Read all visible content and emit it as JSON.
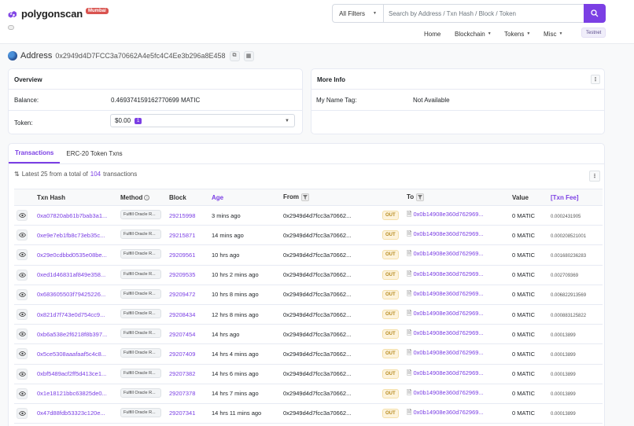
{
  "header": {
    "logo_text": "polygonscan",
    "logo_badge": "Mumbai",
    "filter_label": "All Filters",
    "search_placeholder": "Search by Address / Txn Hash / Block / Token",
    "nav": {
      "home": "Home",
      "blockchain": "Blockchain",
      "tokens": "Tokens",
      "misc": "Misc",
      "testnet": "Testnet"
    }
  },
  "address": {
    "label": "Address",
    "value": "0x2949d4D7FCC3a70662A4e5fc4C4Ee3b296a8E458"
  },
  "overview": {
    "title": "Overview",
    "balance_label": "Balance:",
    "balance_value": "0.469374159162770699 MATIC",
    "token_label": "Token:",
    "token_value": "$0.00",
    "token_count": "1"
  },
  "more_info": {
    "title": "More Info",
    "name_tag_label": "My Name Tag:",
    "name_tag_value": "Not Available"
  },
  "tabs": {
    "transactions": "Transactions",
    "erc20": "ERC-20 Token Txns"
  },
  "summary": {
    "prefix": "Latest 25 from a total of",
    "count": "104",
    "suffix": "transactions"
  },
  "table": {
    "headers": {
      "hash": "Txn Hash",
      "method": "Method",
      "block": "Block",
      "age": "Age",
      "from": "From",
      "to": "To",
      "value": "Value",
      "fee": "[Txn Fee]"
    },
    "rows": [
      {
        "hash": "0xa07820ab61b7bab3a1...",
        "method": "Fulfill Oracle R...",
        "block": "29215998",
        "age": "3 mins ago",
        "from": "0x2949d4d7fcc3a70662...",
        "dir": "OUT",
        "to": "0x0b14908e360d762969...",
        "value": "0 MATIC",
        "fee": "0.0002431905"
      },
      {
        "hash": "0xe9e7eb1fb8c73eb35c...",
        "method": "Fulfill Oracle R...",
        "block": "29215871",
        "age": "14 mins ago",
        "from": "0x2949d4d7fcc3a70662...",
        "dir": "OUT",
        "to": "0x0b14908e360d762969...",
        "value": "0 MATIC",
        "fee": "0.000208521001"
      },
      {
        "hash": "0x29e0cdbbd0535e08be...",
        "method": "Fulfill Oracle R...",
        "block": "29209561",
        "age": "10 hrs ago",
        "from": "0x2949d4d7fcc3a70662...",
        "dir": "OUT",
        "to": "0x0b14908e360d762969...",
        "value": "0 MATIC",
        "fee": "0.001680236283"
      },
      {
        "hash": "0xed1d46831af849e358...",
        "method": "Fulfill Oracle R...",
        "block": "29209535",
        "age": "10 hrs 2 mins ago",
        "from": "0x2949d4d7fcc3a70662...",
        "dir": "OUT",
        "to": "0x0b14908e360d762969...",
        "value": "0 MATIC",
        "fee": "0.002709369"
      },
      {
        "hash": "0x683605503f79425226...",
        "method": "Fulfill Oracle R...",
        "block": "29209472",
        "age": "10 hrs 8 mins ago",
        "from": "0x2949d4d7fcc3a70662...",
        "dir": "OUT",
        "to": "0x0b14908e360d762969...",
        "value": "0 MATIC",
        "fee": "0.006822913569"
      },
      {
        "hash": "0x821d7f743e0d754cc9...",
        "method": "Fulfill Oracle R...",
        "block": "29208434",
        "age": "12 hrs 8 mins ago",
        "from": "0x2949d4d7fcc3a70662...",
        "dir": "OUT",
        "to": "0x0b14908e360d762969...",
        "value": "0 MATIC",
        "fee": "0.000883125822"
      },
      {
        "hash": "0xb6a538e2f6218f8b397...",
        "method": "Fulfill Oracle R...",
        "block": "29207454",
        "age": "14 hrs ago",
        "from": "0x2949d4d7fcc3a70662...",
        "dir": "OUT",
        "to": "0x0b14908e360d762969...",
        "value": "0 MATIC",
        "fee": "0.00013899"
      },
      {
        "hash": "0x5ce5308aaafaaf5c4c8...",
        "method": "Fulfill Oracle R...",
        "block": "29207409",
        "age": "14 hrs 4 mins ago",
        "from": "0x2949d4d7fcc3a70662...",
        "dir": "OUT",
        "to": "0x0b14908e360d762969...",
        "value": "0 MATIC",
        "fee": "0.00013899"
      },
      {
        "hash": "0xbf5489acf2ff5d413ce1...",
        "method": "Fulfill Oracle R...",
        "block": "29207382",
        "age": "14 hrs 6 mins ago",
        "from": "0x2949d4d7fcc3a70662...",
        "dir": "OUT",
        "to": "0x0b14908e360d762969...",
        "value": "0 MATIC",
        "fee": "0.00013899"
      },
      {
        "hash": "0x1e18121bbc63825de0...",
        "method": "Fulfill Oracle R...",
        "block": "29207378",
        "age": "14 hrs 7 mins ago",
        "from": "0x2949d4d7fcc3a70662...",
        "dir": "OUT",
        "to": "0x0b14908e360d762969...",
        "value": "0 MATIC",
        "fee": "0.00013899"
      },
      {
        "hash": "0x47d88fdb53323c120e...",
        "method": "Fulfill Oracle R...",
        "block": "29207341",
        "age": "14 hrs 11 mins ago",
        "from": "0x2949d4d7fcc3a70662...",
        "dir": "OUT",
        "to": "0x0b14908e360d762969...",
        "value": "0 MATIC",
        "fee": "0.00013899"
      }
    ]
  }
}
